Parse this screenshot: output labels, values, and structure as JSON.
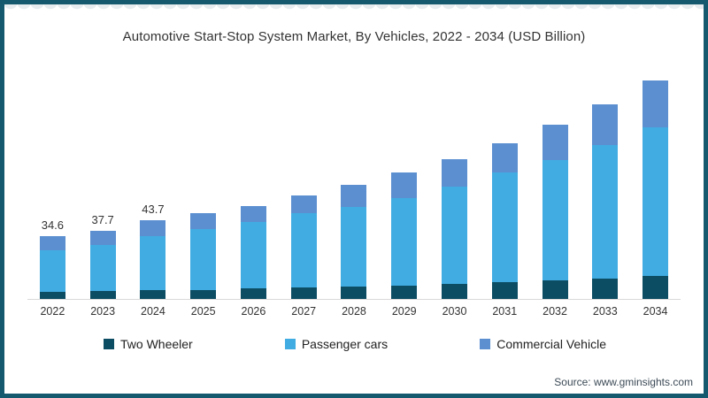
{
  "title": "Automotive Start-Stop System Market, By Vehicles, 2022 - 2034 (USD Billion)",
  "source": "Source: www.gminsights.com",
  "colors": {
    "frame": "#15596E",
    "axis_line": "#d9d9d9",
    "text": "#333333",
    "two_wheeler": "#0D4D64",
    "passenger_cars": "#41ACE2",
    "commercial_vehicle": "#5B8FD0"
  },
  "legend": [
    {
      "label": "Two Wheeler",
      "color": "#0D4D64"
    },
    {
      "label": "Passenger cars",
      "color": "#41ACE2"
    },
    {
      "label": "Commercial Vehicle",
      "color": "#5B8FD0"
    }
  ],
  "chart_data": {
    "type": "bar",
    "stacked": true,
    "title": "Automotive Start-Stop System Market, By Vehicles, 2022 - 2034 (USD Billion)",
    "xlabel": "",
    "ylabel": "USD Billion",
    "ylim": [
      0,
      125
    ],
    "grid": false,
    "legend_position": "bottom",
    "categories": [
      "2022",
      "2023",
      "2024",
      "2025",
      "2026",
      "2027",
      "2028",
      "2029",
      "2030",
      "2031",
      "2032",
      "2033",
      "2034"
    ],
    "series": [
      {
        "name": "Two Wheeler",
        "color": "#0D4D64",
        "values": [
          4.0,
          4.4,
          4.9,
          5.0,
          5.9,
          6.4,
          6.9,
          7.4,
          8.3,
          9.3,
          10.3,
          11.3,
          12.7
        ]
      },
      {
        "name": "Passenger cars",
        "color": "#41ACE2",
        "values": [
          22.8,
          25.5,
          30.0,
          33.7,
          36.6,
          41.2,
          44.3,
          48.6,
          54.0,
          60.8,
          66.8,
          74.0,
          82.4
        ]
      },
      {
        "name": "Commercial Vehicle",
        "color": "#5B8FD0",
        "values": [
          7.8,
          7.8,
          8.8,
          8.8,
          9.0,
          9.8,
          12.0,
          14.0,
          15.2,
          16.2,
          19.6,
          22.5,
          26.0
        ]
      }
    ],
    "totals": [
      34.6,
      37.7,
      43.7,
      47.5,
      51.5,
      57.4,
      63.2,
      70.0,
      77.5,
      86.3,
      96.7,
      107.8,
      121.1
    ],
    "data_labels": [
      "34.6",
      "37.7",
      "43.7",
      "",
      "",
      "",
      "",
      "",
      "",
      "",
      "",
      "",
      ""
    ]
  }
}
